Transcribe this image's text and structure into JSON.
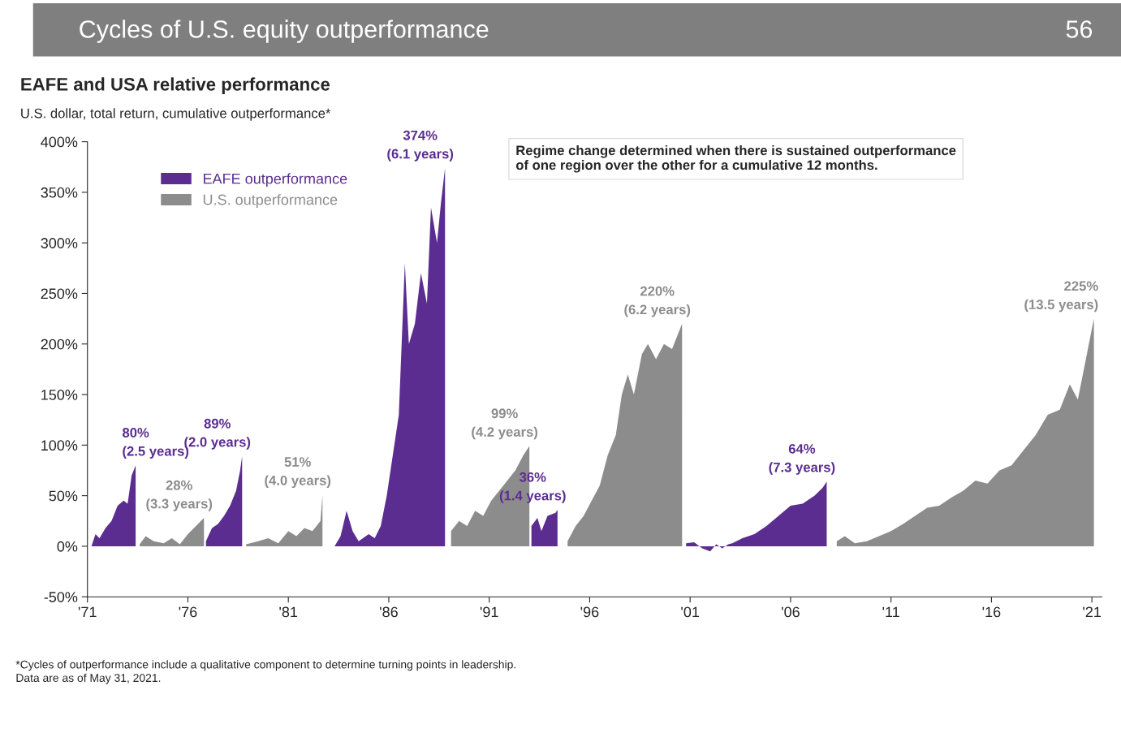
{
  "chart_data": {
    "type": "area",
    "title": "Cycles of U.S. equity outperformance",
    "subtitle": "EAFE and USA relative performance",
    "annotations": [
      "U.S. dollar, total return, cumulative outperformance*",
      "Regime change determined when there is sustained outperformance\nof one region over the other for a cumulative 12 months.",
      "*Cycles of outperformance include a qualitative component to determine turning points in leadership.",
      "Data are as of May 31, 2021.",
      "56",
      {
        "text": "80%\n(2.5 years)",
        "x": 1973.4,
        "y": 80
      },
      {
        "text": "28%\n(3.3 years)",
        "x": 1976.8,
        "y": 28
      },
      {
        "text": "89%\n(2.0 years)",
        "x": 1978.7,
        "y": 89
      },
      {
        "text": "51%\n(4.0 years)",
        "x": 1982.7,
        "y": 51
      },
      {
        "text": "374%\n(6.1 years)",
        "x": 1988.8,
        "y": 374
      },
      {
        "text": "99%\n(4.2 years)",
        "x": 1993.0,
        "y": 99
      },
      {
        "text": "36%\n(1.4 years)",
        "x": 1994.4,
        "y": 36
      },
      {
        "text": "220%\n(6.2 years)",
        "x": 2000.6,
        "y": 220
      },
      {
        "text": "64%\n(7.3 years)",
        "x": 2007.8,
        "y": 64
      },
      {
        "text": "225%\n(13.5 years)",
        "x": 2021.1,
        "y": 225
      }
    ],
    "series": [
      {
        "name": "EAFE outperformance",
        "color": "#5c2d91",
        "x": [
          1971.2,
          1971.4,
          1971.6,
          1971.9,
          1972.2,
          1972.5,
          1972.8,
          1973.0,
          1973.2,
          1973.4,
          1973.5,
          1976.9,
          1977.2,
          1977.5,
          1977.8,
          1978.1,
          1978.4,
          1978.6,
          1978.7,
          1978.8,
          1983.3,
          1983.6,
          1983.9,
          1984.2,
          1984.5,
          1985.0,
          1985.3,
          1985.6,
          1985.9,
          1986.2,
          1986.5,
          1986.8,
          1987.0,
          1987.3,
          1987.6,
          1987.9,
          1988.1,
          1988.4,
          1988.6,
          1988.8,
          1988.9,
          1993.1,
          1993.4,
          1993.6,
          1993.9,
          1994.3,
          1994.4,
          1994.5,
          2000.8,
          2001.2,
          2001.6,
          2002.0,
          2002.3,
          2002.6,
          2002.9,
          2003.1,
          2003.6,
          2004.2,
          2004.8,
          2005.4,
          2006.0,
          2006.6,
          2007.2,
          2007.6,
          2007.8
        ],
        "values": [
          0,
          12,
          8,
          18,
          25,
          40,
          45,
          42,
          70,
          80,
          null,
          5,
          18,
          22,
          30,
          40,
          55,
          75,
          89,
          null,
          0,
          10,
          35,
          15,
          5,
          12,
          8,
          20,
          50,
          90,
          130,
          280,
          200,
          220,
          270,
          240,
          335,
          300,
          340,
          374,
          null,
          20,
          28,
          15,
          30,
          33,
          36,
          null,
          3,
          4,
          -2,
          -5,
          2,
          -2,
          2,
          3,
          8,
          12,
          20,
          30,
          40,
          42,
          50,
          58,
          64
        ]
      },
      {
        "name": "U.S. outperformance",
        "color": "#8c8c8c",
        "x": [
          1973.6,
          1973.9,
          1974.3,
          1974.8,
          1975.2,
          1975.6,
          1976.0,
          1976.4,
          1976.8,
          1976.85,
          1978.9,
          1979.5,
          1980.0,
          1980.5,
          1981.0,
          1981.4,
          1981.8,
          1982.2,
          1982.6,
          1982.7,
          1982.75,
          1989.1,
          1989.5,
          1989.9,
          1990.3,
          1990.7,
          1991.1,
          1991.5,
          1991.9,
          1992.3,
          1992.7,
          1993.0,
          1993.05,
          1994.9,
          1995.3,
          1995.7,
          1996.1,
          1996.5,
          1996.9,
          1997.3,
          1997.6,
          1997.9,
          1998.2,
          1998.6,
          1998.9,
          1999.3,
          1999.7,
          2000.1,
          2000.4,
          2000.6,
          2000.7,
          2008.3,
          2008.7,
          2009.2,
          2009.8,
          2010.4,
          2011.0,
          2011.6,
          2012.2,
          2012.8,
          2013.4,
          2014.0,
          2014.6,
          2015.2,
          2015.8,
          2016.4,
          2017.0,
          2017.6,
          2018.2,
          2018.8,
          2019.4,
          2019.9,
          2020.3,
          2020.7,
          2021.1
        ],
        "values": [
          2,
          10,
          5,
          3,
          8,
          2,
          12,
          20,
          28,
          null,
          2,
          5,
          8,
          3,
          15,
          10,
          18,
          15,
          25,
          51,
          null,
          15,
          25,
          20,
          35,
          30,
          45,
          55,
          65,
          75,
          90,
          99,
          null,
          5,
          20,
          30,
          45,
          60,
          90,
          110,
          150,
          170,
          150,
          190,
          200,
          185,
          200,
          195,
          210,
          220,
          null,
          5,
          10,
          3,
          5,
          10,
          15,
          22,
          30,
          38,
          40,
          48,
          55,
          65,
          62,
          75,
          80,
          95,
          110,
          130,
          135,
          160,
          145,
          185,
          225
        ]
      }
    ],
    "xlim": [
      1971,
      2021.5
    ],
    "xticks": [
      {
        "value": 1971,
        "label": "'71"
      },
      {
        "value": 1976,
        "label": "'76"
      },
      {
        "value": 1981,
        "label": "'81"
      },
      {
        "value": 1986,
        "label": "'86"
      },
      {
        "value": 1991,
        "label": "'91"
      },
      {
        "value": 1996,
        "label": "'96"
      },
      {
        "value": 2001,
        "label": "'01"
      },
      {
        "value": 2006,
        "label": "'06"
      },
      {
        "value": 2011,
        "label": "'11"
      },
      {
        "value": 2016,
        "label": "'16"
      },
      {
        "value": 2021,
        "label": "'21"
      }
    ],
    "ylim": [
      -50,
      400
    ],
    "yticks": [
      {
        "value": -50,
        "label": "-50%"
      },
      {
        "value": 0,
        "label": "0%"
      },
      {
        "value": 50,
        "label": "50%"
      },
      {
        "value": 100,
        "label": "100%"
      },
      {
        "value": 150,
        "label": "150%"
      },
      {
        "value": 200,
        "label": "200%"
      },
      {
        "value": 250,
        "label": "250%"
      },
      {
        "value": 300,
        "label": "300%"
      },
      {
        "value": 350,
        "label": "350%"
      },
      {
        "value": 400,
        "label": "400%"
      }
    ],
    "legend": "top left",
    "grid": false
  }
}
